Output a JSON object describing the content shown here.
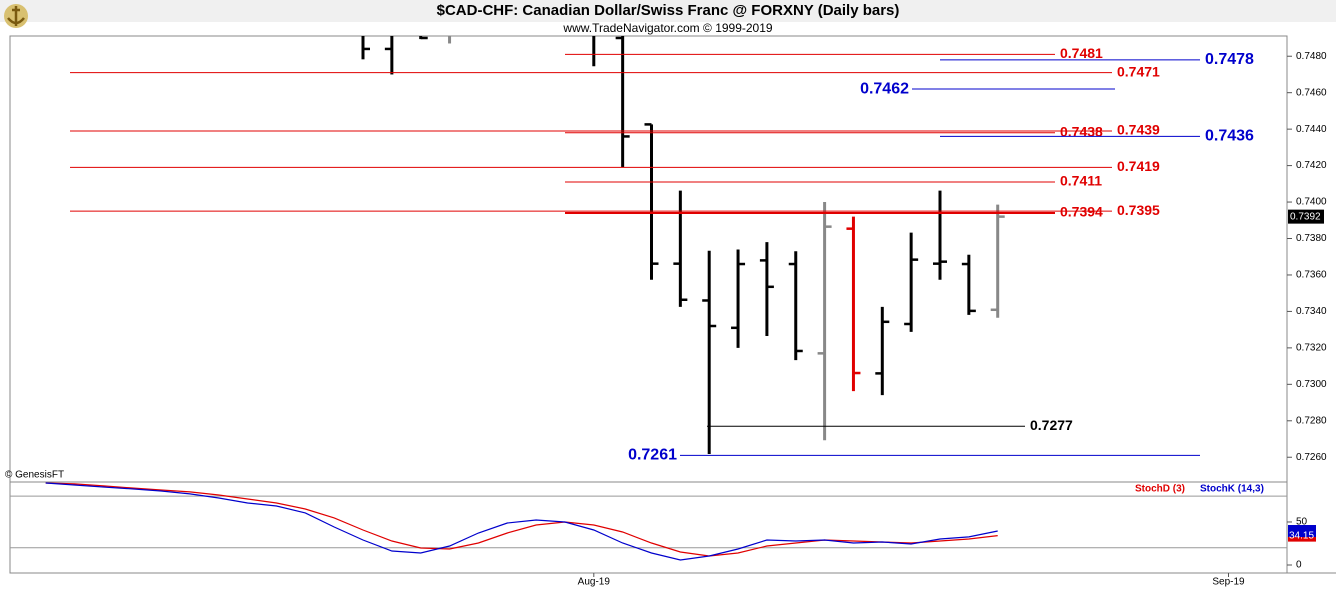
{
  "header": {
    "title": "$CAD-CHF:  Canadian Dollar/Swiss Franc @ FORXNY  (Daily bars)",
    "subtitle": "www.TradeNavigator.com © 1999-2019",
    "credit": "© GenesisFT"
  },
  "chart_data": [
    {
      "type": "ohlc",
      "categories": [
        null,
        null,
        null,
        null,
        null,
        null,
        null,
        null,
        null,
        null,
        null,
        null,
        null,
        null,
        null,
        null,
        null,
        null,
        null,
        null,
        "Aug-19",
        null,
        null,
        null,
        null,
        null,
        null,
        null,
        null,
        null,
        null,
        null,
        null,
        null,
        null,
        null,
        null,
        null,
        null,
        null,
        null,
        null,
        "Sep-19",
        null
      ],
      "open": [
        null,
        null,
        null,
        null,
        null,
        null,
        null,
        null,
        null,
        null,
        null,
        null,
        null,
        0.7484,
        null,
        null,
        null,
        null,
        null,
        null,
        null,
        0.749,
        0.74426,
        0.73662,
        0.7346,
        0.7331,
        0.7368,
        0.7366,
        0.7317,
        0.73854,
        0.7306,
        0.73331,
        0.73662,
        0.7366,
        0.73409,
        null,
        null,
        null,
        null,
        null,
        null,
        null,
        null,
        null
      ],
      "high": [
        null,
        null,
        null,
        null,
        null,
        null,
        null,
        null,
        null,
        null,
        null,
        null,
        0.7495,
        0.7495,
        0.7495,
        0.7495,
        null,
        null,
        null,
        null,
        0.7495,
        0.7495,
        0.74426,
        0.74063,
        0.73733,
        0.7374,
        0.7378,
        0.7373,
        0.74,
        0.7392,
        0.73425,
        0.73832,
        0.74063,
        0.73711,
        0.73986,
        null,
        null,
        null,
        null,
        null,
        null,
        null,
        null,
        null
      ],
      "low": [
        null,
        null,
        null,
        null,
        null,
        null,
        null,
        null,
        null,
        null,
        null,
        null,
        0.74783,
        0.747,
        0.74894,
        0.7487,
        null,
        null,
        null,
        null,
        0.74745,
        0.7419,
        0.73574,
        0.73425,
        0.72618,
        0.732,
        0.73265,
        0.73133,
        0.72693,
        0.72963,
        0.72941,
        0.73288,
        0.73574,
        0.73381,
        0.73365,
        null,
        null,
        null,
        null,
        null,
        null,
        null,
        null,
        null
      ],
      "close": [
        null,
        null,
        null,
        null,
        null,
        null,
        null,
        null,
        null,
        null,
        null,
        null,
        0.7484,
        null,
        0.749,
        null,
        null,
        null,
        null,
        null,
        null,
        0.7436,
        0.73662,
        0.73464,
        0.7332,
        0.7366,
        0.73535,
        0.73183,
        0.73865,
        0.73062,
        0.73343,
        0.73684,
        0.73673,
        0.73403,
        0.7392,
        null,
        null,
        null,
        null,
        null,
        null,
        null,
        null,
        null
      ],
      "colors": [
        "#000",
        "#000",
        "#000",
        "#000",
        "#000",
        "#000",
        "#000",
        "#000",
        "#000",
        "#000",
        "#000",
        "#000",
        "#000",
        "#000",
        "#000",
        "#888",
        "#000",
        "#000",
        "#000",
        "#000",
        "#000",
        "#000",
        "#000",
        "#000",
        "#000",
        "#000",
        "#000",
        "#000",
        "#888",
        "#e00000",
        "#000",
        "#000",
        "#000",
        "#000",
        "#888",
        "#000",
        "#000",
        "#000",
        "#000",
        "#000",
        "#000",
        "#000",
        "#000",
        "#000"
      ],
      "ylim": [
        0.7253,
        0.749
      ],
      "yticks": [
        {
          "value": 0.726,
          "label": "0.7260"
        },
        {
          "value": 0.728,
          "label": "0.7280"
        },
        {
          "value": 0.73,
          "label": "0.7300"
        },
        {
          "value": 0.732,
          "label": "0.7320"
        },
        {
          "value": 0.734,
          "label": "0.7340"
        },
        {
          "value": 0.736,
          "label": "0.7360"
        },
        {
          "value": 0.738,
          "label": "0.7380"
        },
        {
          "value": 0.74,
          "label": "0.7400"
        },
        {
          "value": 0.742,
          "label": "0.7420"
        },
        {
          "value": 0.744,
          "label": "0.7440"
        },
        {
          "value": 0.746,
          "label": "0.7460"
        },
        {
          "value": 0.748,
          "label": "0.7480"
        }
      ],
      "levels": [
        {
          "value": 0.7481,
          "color": "#e00000"
        },
        {
          "value": 0.7471,
          "color": "#e00000"
        },
        {
          "value": 0.7478,
          "color": "#0000cc"
        },
        {
          "value": 0.7462,
          "color": "#0000cc"
        },
        {
          "value": 0.7439,
          "color": "#e00000"
        },
        {
          "value": 0.7438,
          "color": "#e00000"
        },
        {
          "value": 0.7436,
          "color": "#0000cc"
        },
        {
          "value": 0.7419,
          "color": "#e00000"
        },
        {
          "value": 0.7411,
          "color": "#e00000"
        },
        {
          "value": 0.7395,
          "color": "#e00000"
        },
        {
          "value": 0.7394,
          "color": "#e00000"
        },
        {
          "value": 0.7277,
          "color": "#000000"
        },
        {
          "value": 0.7261,
          "color": "#0000cc"
        }
      ],
      "last_price": 0.7392
    },
    {
      "type": "line",
      "series": [
        {
          "name": "StochD (3)",
          "color": "#e00000",
          "values": [
            null,
            95.3,
            94.2,
            91.9,
            89.5,
            87.2,
            84.9,
            81.4,
            76.7,
            72.1,
            65.1,
            54.7,
            40.7,
            27.9,
            19.8,
            18.6,
            25.6,
            37.2,
            46.5,
            50,
            46.5,
            38.4,
            25.6,
            15.1,
            10.5,
            14,
            22.1,
            25.6,
            29.1,
            27.9,
            26.7,
            25.6,
            27.9,
            30.2,
            34.15,
            null,
            null,
            null,
            null,
            null,
            null,
            null,
            null,
            null
          ]
        },
        {
          "name": "StochK (14,3)",
          "color": "#0000cc",
          "values": [
            null,
            95.3,
            93,
            90.7,
            88.4,
            86,
            82.6,
            77.9,
            72.1,
            68.6,
            60.5,
            44.2,
            29.1,
            16.3,
            14,
            22.1,
            37.2,
            48.8,
            52.3,
            50,
            40.7,
            25.6,
            14,
            5.8,
            10.5,
            18.6,
            29.1,
            27.9,
            29.1,
            25.6,
            26.7,
            24.4,
            30.2,
            32.6,
            39.5,
            null,
            null,
            null,
            null,
            null,
            null,
            null,
            null,
            null
          ]
        }
      ],
      "ylim": [
        -9.3,
        95.3
      ],
      "yticks": [
        0,
        50
      ],
      "levels": [
        20,
        80
      ]
    }
  ]
}
